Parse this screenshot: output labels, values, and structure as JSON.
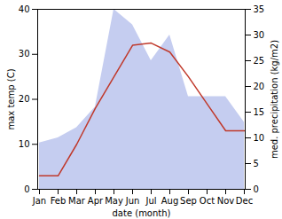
{
  "chart_data": {
    "type": "line",
    "categories": [
      "Jan",
      "Feb",
      "Mar",
      "Apr",
      "May",
      "Jun",
      "Jul",
      "Aug",
      "Sep",
      "Oct",
      "Nov",
      "Dec"
    ],
    "xlabel": "date (month)",
    "ylabel": "max temp (C)",
    "y2label": "med. precipitation (kg/m2)",
    "series": [
      {
        "type": "area",
        "axis": "y2",
        "color": "#c5cdf0",
        "values": [
          9.0,
          10.0,
          12.0,
          16.0,
          35.0,
          32.0,
          25.0,
          30.0,
          18.0,
          18.0,
          18.0,
          13.0
        ]
      },
      {
        "type": "line",
        "axis": "y",
        "color": "#c0392b",
        "values": [
          3.0,
          3.0,
          10.0,
          18.0,
          25.0,
          32.0,
          32.5,
          30.5,
          25.0,
          19.0,
          13.0,
          13.0
        ]
      }
    ],
    "ylim": [
      0,
      40
    ],
    "yticks": [
      0,
      10,
      20,
      30,
      40
    ],
    "y2lim": [
      0,
      35
    ],
    "y2ticks": [
      0,
      5,
      10,
      15,
      20,
      25,
      30,
      35
    ]
  }
}
